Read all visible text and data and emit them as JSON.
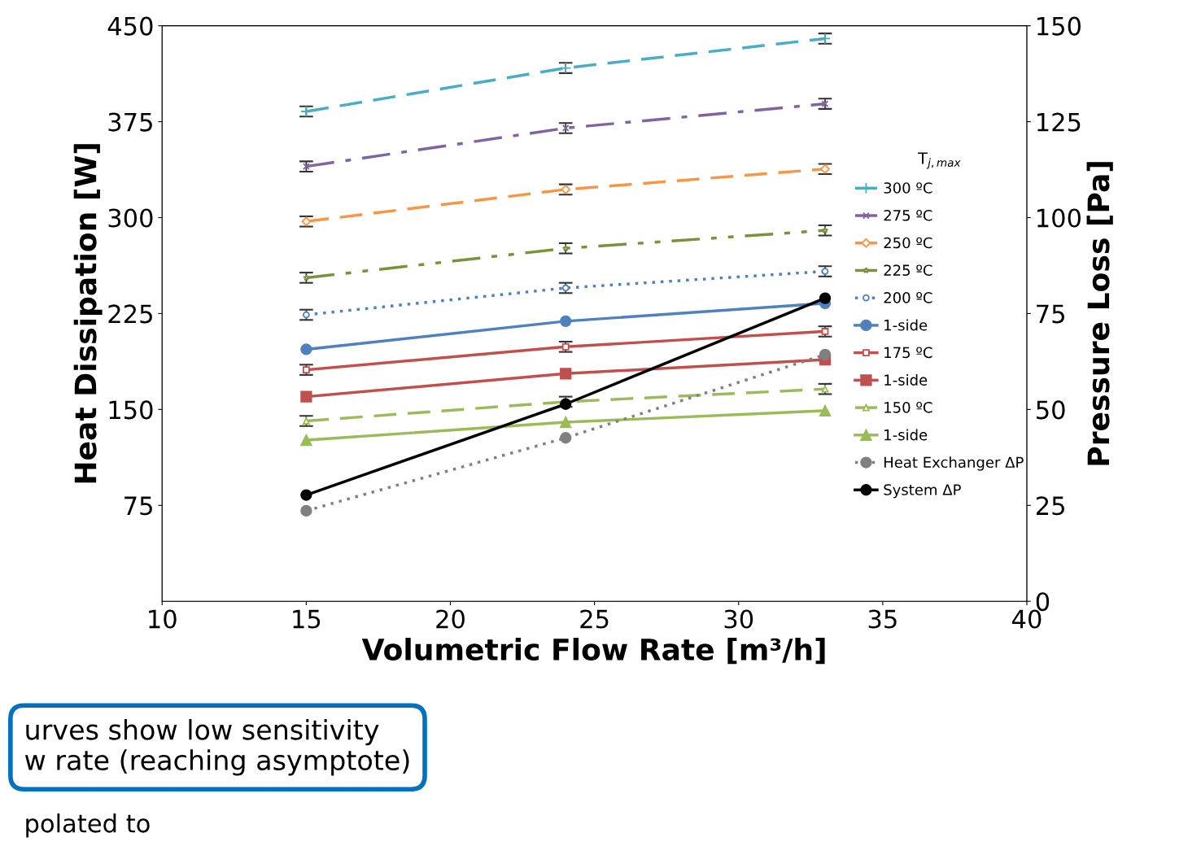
{
  "chart_data": {
    "type": "line",
    "x": [
      15,
      24,
      33
    ],
    "xlim": [
      10,
      40
    ],
    "xticks": [
      10,
      15,
      20,
      25,
      30,
      35,
      40
    ],
    "ylim": [
      0,
      450
    ],
    "yticks": [
      75,
      150,
      225,
      300,
      375,
      450
    ],
    "y2lim": [
      0,
      150
    ],
    "y2ticks": [
      0,
      25,
      50,
      75,
      100,
      125,
      150
    ],
    "xlabel": "Volumetric Flow Rate [m³/h]",
    "ylabel": "Heat Dissipation [W]",
    "y2label": "Pressure Loss [Pa]",
    "legend_title": "T$_{j,max}$",
    "legend": "right",
    "grid": false,
    "series": [
      {
        "name": "300 ºC",
        "color": "#4bacc6",
        "values": [
          383,
          417,
          440
        ],
        "errors": [
          4,
          4,
          4
        ],
        "line_style": "dashed",
        "marker": "cross"
      },
      {
        "name": "275 ºC",
        "color": "#8064a2",
        "values": [
          340,
          370,
          389
        ],
        "errors": [
          4,
          4,
          4
        ],
        "line_style": "dashdot",
        "marker": "x"
      },
      {
        "name": "250 ºC",
        "color": "#f79646",
        "values": [
          297,
          322,
          338
        ],
        "errors": [
          4,
          4,
          4
        ],
        "line_style": "dashed",
        "marker": "diamond"
      },
      {
        "name": "225 ºC",
        "color": "#77933c",
        "values": [
          253,
          276,
          290
        ],
        "errors": [
          4,
          4,
          4
        ],
        "line_style": "dashdotdot",
        "marker": "star"
      },
      {
        "name": "200 ºC",
        "color": "#4f81bd",
        "values": [
          224,
          245,
          258
        ],
        "errors": [
          4,
          4,
          4
        ],
        "line_style": "dotted",
        "marker": "circle"
      },
      {
        "name": "1-side",
        "color": "#4f81bd",
        "values": [
          197,
          219,
          233
        ],
        "line_style": "solid",
        "marker": "circle"
      },
      {
        "name": "175 ºC",
        "color": "#c0504d",
        "values": [
          181,
          199,
          211
        ],
        "errors": [
          4,
          4,
          4
        ],
        "line_style": "solid",
        "marker": "square"
      },
      {
        "name": "1-side",
        "color": "#c0504d",
        "values": [
          160,
          178,
          189
        ],
        "line_style": "solid",
        "marker": "square"
      },
      {
        "name": "150 ºC",
        "color": "#9bbb59",
        "values": [
          141,
          156,
          166
        ],
        "errors": [
          4,
          4,
          4
        ],
        "line_style": "dashed",
        "marker": "triangle"
      },
      {
        "name": "1-side",
        "color": "#9bbb59",
        "values": [
          126,
          140,
          149
        ],
        "line_style": "solid",
        "marker": "triangle"
      },
      {
        "name": "Heat Exchanger ΔP",
        "color": "#808080",
        "values": [
          23.6,
          42.6,
          64.3
        ],
        "axis": "y2",
        "line_style": "dotted",
        "marker": "circle"
      },
      {
        "name": "System ΔP",
        "color": "#000000",
        "values": [
          27.7,
          51.4,
          79
        ],
        "axis": "y2",
        "line_style": "solid",
        "marker": "circle"
      }
    ],
    "annotations": [
      "urves show low sensitivity\nw rate (reaching asymptote)",
      "polated to"
    ]
  }
}
